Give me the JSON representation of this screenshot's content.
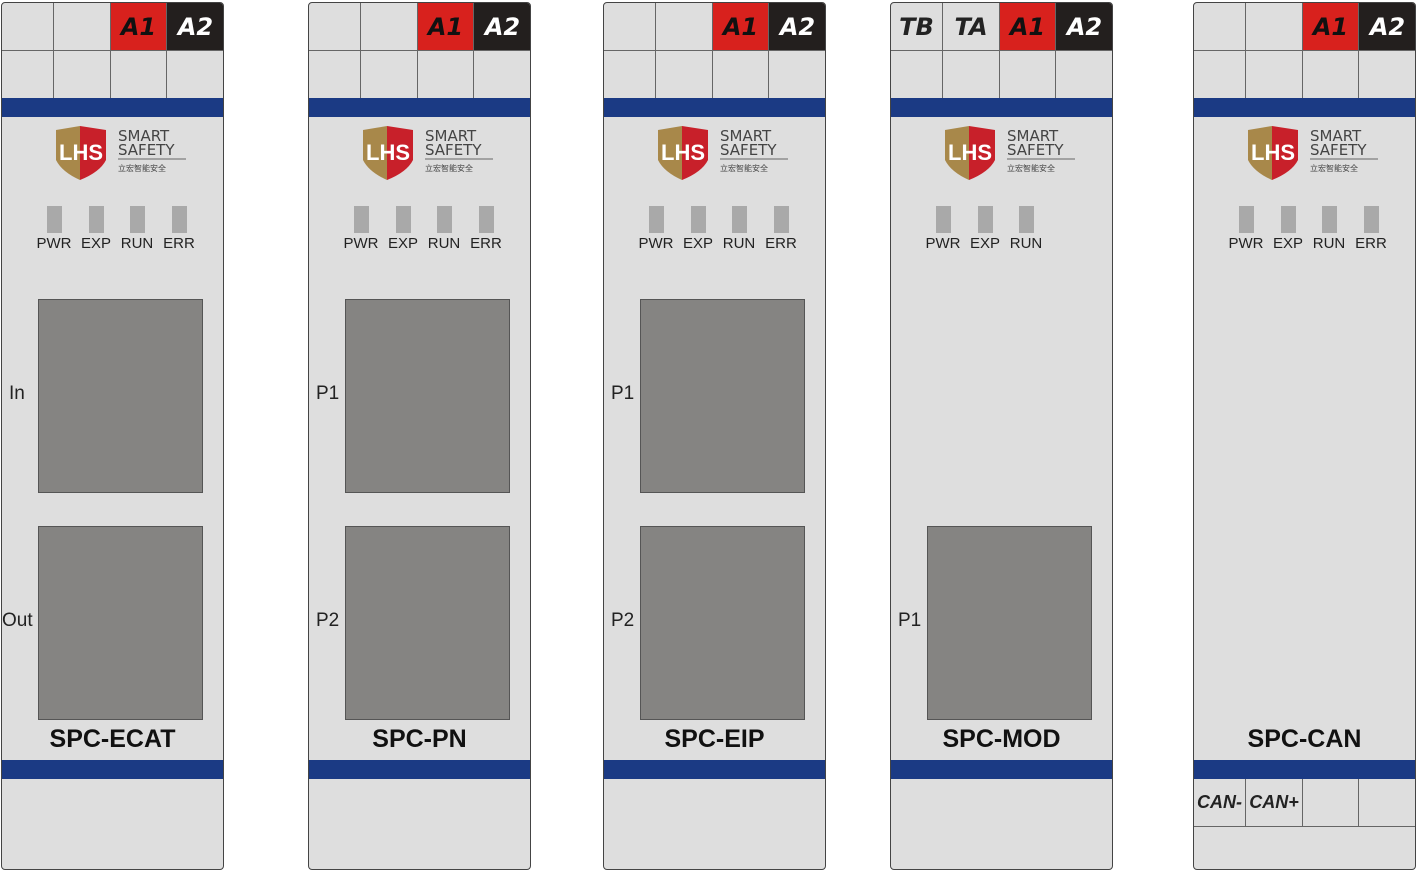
{
  "colors": {
    "red": "#d8211d",
    "black": "#231f1e",
    "blue": "#1b3a84",
    "panel": "#dedede",
    "port": "#858482"
  },
  "logo": {
    "mark": "LHS",
    "line1": "SMART",
    "line2": "SAFETY",
    "line3": "立宏智能安全"
  },
  "modules": [
    {
      "model": "SPC-ECAT",
      "top_terminals": [
        "",
        "",
        "A1",
        "A2"
      ],
      "leds": [
        "PWR",
        "EXP",
        "RUN",
        "ERR"
      ],
      "ports": [
        "In",
        "Out"
      ],
      "bottom_terminals": []
    },
    {
      "model": "SPC-PN",
      "top_terminals": [
        "",
        "",
        "A1",
        "A2"
      ],
      "leds": [
        "PWR",
        "EXP",
        "RUN",
        "ERR"
      ],
      "ports": [
        "P1",
        "P2"
      ],
      "bottom_terminals": []
    },
    {
      "model": "SPC-EIP",
      "top_terminals": [
        "",
        "",
        "A1",
        "A2"
      ],
      "leds": [
        "PWR",
        "EXP",
        "RUN",
        "ERR"
      ],
      "ports": [
        "P1",
        "P2"
      ],
      "bottom_terminals": []
    },
    {
      "model": "SPC-MOD",
      "top_terminals": [
        "TB",
        "TA",
        "A1",
        "A2"
      ],
      "leds": [
        "PWR",
        "EXP",
        "RUN"
      ],
      "ports": [
        "",
        "P1"
      ],
      "bottom_terminals": []
    },
    {
      "model": "SPC-CAN",
      "top_terminals": [
        "",
        "",
        "A1",
        "A2"
      ],
      "leds": [
        "PWR",
        "EXP",
        "RUN",
        "ERR"
      ],
      "ports": [],
      "bottom_terminals": [
        "CAN-",
        "CAN+",
        "",
        ""
      ]
    }
  ]
}
